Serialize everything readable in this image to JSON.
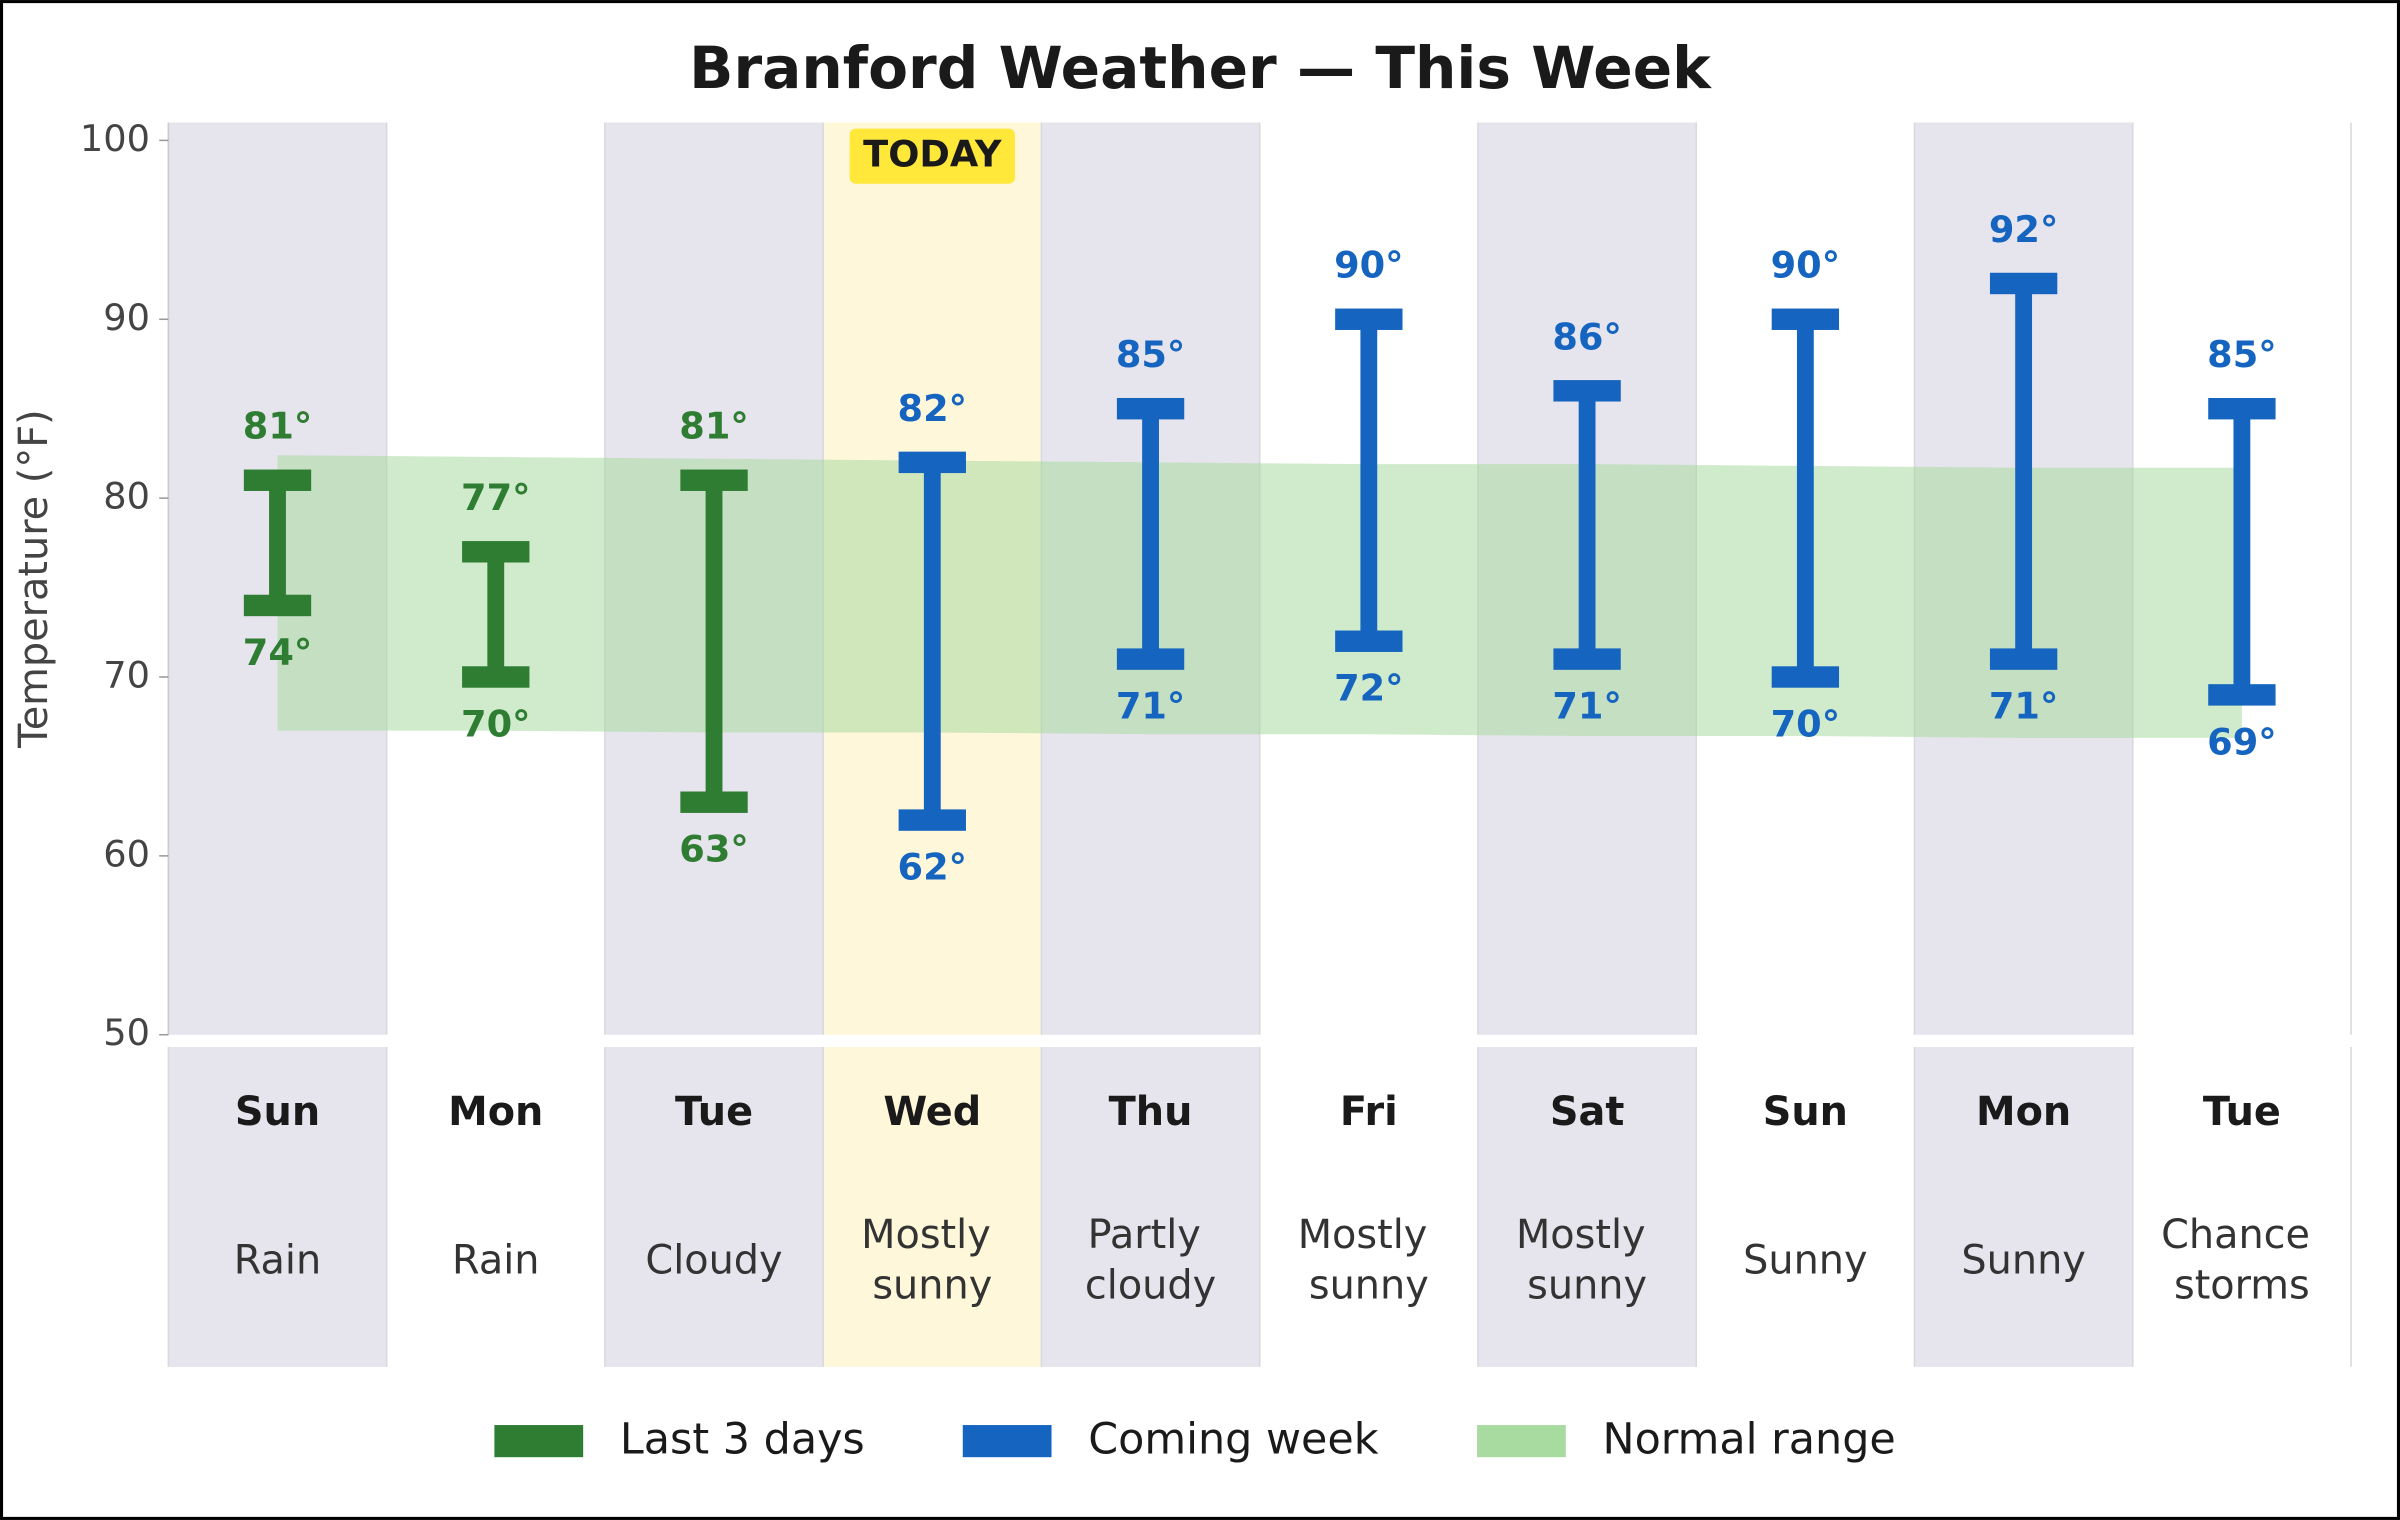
{
  "chart_data": {
    "type": "range_bar",
    "title": "Branford Weather — This Week",
    "y_label": "Temperature (°F)",
    "categories": [
      "Sun",
      "Mon",
      "Tue",
      "Wed",
      "Thu",
      "Fri",
      "Sat",
      "Sun",
      "Mon",
      "Tue"
    ],
    "conditions": [
      "Rain",
      "Rain",
      "Cloudy",
      "Mostly sunny",
      "Partly cloudy",
      "Mostly sunny",
      "Mostly sunny",
      "Sunny",
      "Sunny",
      "Chance storms"
    ],
    "highlight_index": 3,
    "highlight_label": "TODAY",
    "ylim": [
      50,
      101
    ],
    "yticks": [
      50,
      60,
      70,
      80,
      90,
      100
    ],
    "series": [
      {
        "name": "Last 3 days",
        "color": "#2e7d32",
        "high_values": [
          81,
          77,
          81,
          null,
          null,
          null,
          null,
          null,
          null,
          null
        ],
        "high_labels": [
          "81°",
          "77°",
          "81°",
          null,
          null,
          null,
          null,
          null,
          null,
          null
        ],
        "low_values": [
          74,
          70,
          63,
          null,
          null,
          null,
          null,
          null,
          null,
          null
        ],
        "low_labels": [
          "74°",
          "70°",
          "63°",
          null,
          null,
          null,
          null,
          null,
          null,
          null
        ]
      },
      {
        "name": "Coming week",
        "color": "#1565c0",
        "high_values": [
          null,
          null,
          null,
          82,
          85,
          90,
          86,
          90,
          92,
          85
        ],
        "high_labels": [
          null,
          null,
          null,
          "82°",
          "85°",
          "90°",
          "86°",
          "90°",
          "92°",
          "85°"
        ],
        "low_values": [
          null,
          null,
          null,
          62,
          71,
          72,
          71,
          70,
          71,
          69
        ],
        "low_labels": [
          null,
          null,
          null,
          "62°",
          "71°",
          "72°",
          "71°",
          "70°",
          "71°",
          "69°"
        ]
      }
    ],
    "normal_range": {
      "name": "Normal range",
      "color": "#a8dba0",
      "high_values": [
        82.4,
        82.3,
        82.2,
        82.1,
        82.0,
        81.9,
        81.9,
        81.8,
        81.7,
        81.7
      ],
      "low_values": [
        67.0,
        67.0,
        66.9,
        66.9,
        66.8,
        66.8,
        66.7,
        66.7,
        66.6,
        66.6
      ]
    }
  }
}
